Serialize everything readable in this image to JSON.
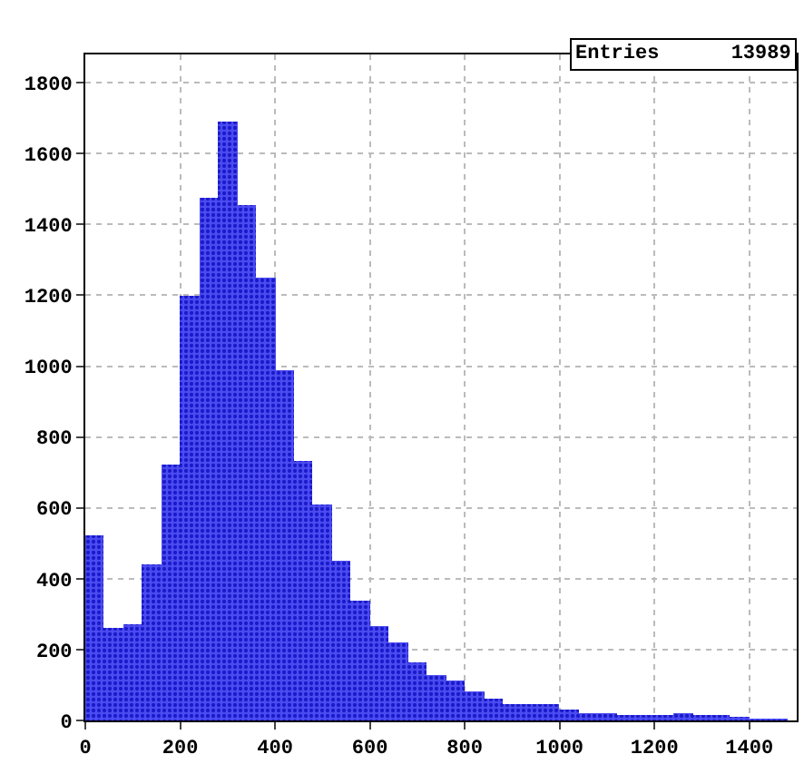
{
  "chart_data": {
    "type": "histogram",
    "bins": [
      0,
      40,
      80,
      120,
      160,
      200,
      240,
      280,
      320,
      360,
      400,
      440,
      480,
      520,
      560,
      600,
      640,
      680,
      720,
      760,
      800,
      840,
      880,
      920,
      960,
      1000,
      1040,
      1080,
      1120,
      1160,
      1200,
      1240,
      1280,
      1320,
      1360,
      1400,
      1440,
      1480
    ],
    "values": [
      520,
      260,
      270,
      440,
      720,
      1200,
      1475,
      1690,
      1455,
      1250,
      990,
      735,
      610,
      450,
      340,
      265,
      220,
      165,
      130,
      115,
      80,
      60,
      45,
      45,
      45,
      30,
      20,
      18,
      15,
      15,
      15,
      20,
      15,
      15,
      10,
      5,
      5
    ],
    "color": "#4b4bf0",
    "xlim": [
      0,
      1500
    ],
    "xticks": [
      0,
      200,
      400,
      600,
      800,
      1000,
      1200,
      1400
    ],
    "ylim": [
      0,
      1880
    ],
    "yticks": [
      0,
      200,
      400,
      600,
      800,
      1000,
      1200,
      1400,
      1600,
      1800
    ],
    "grid": true,
    "annotations": [
      "Entries      13989"
    ]
  }
}
